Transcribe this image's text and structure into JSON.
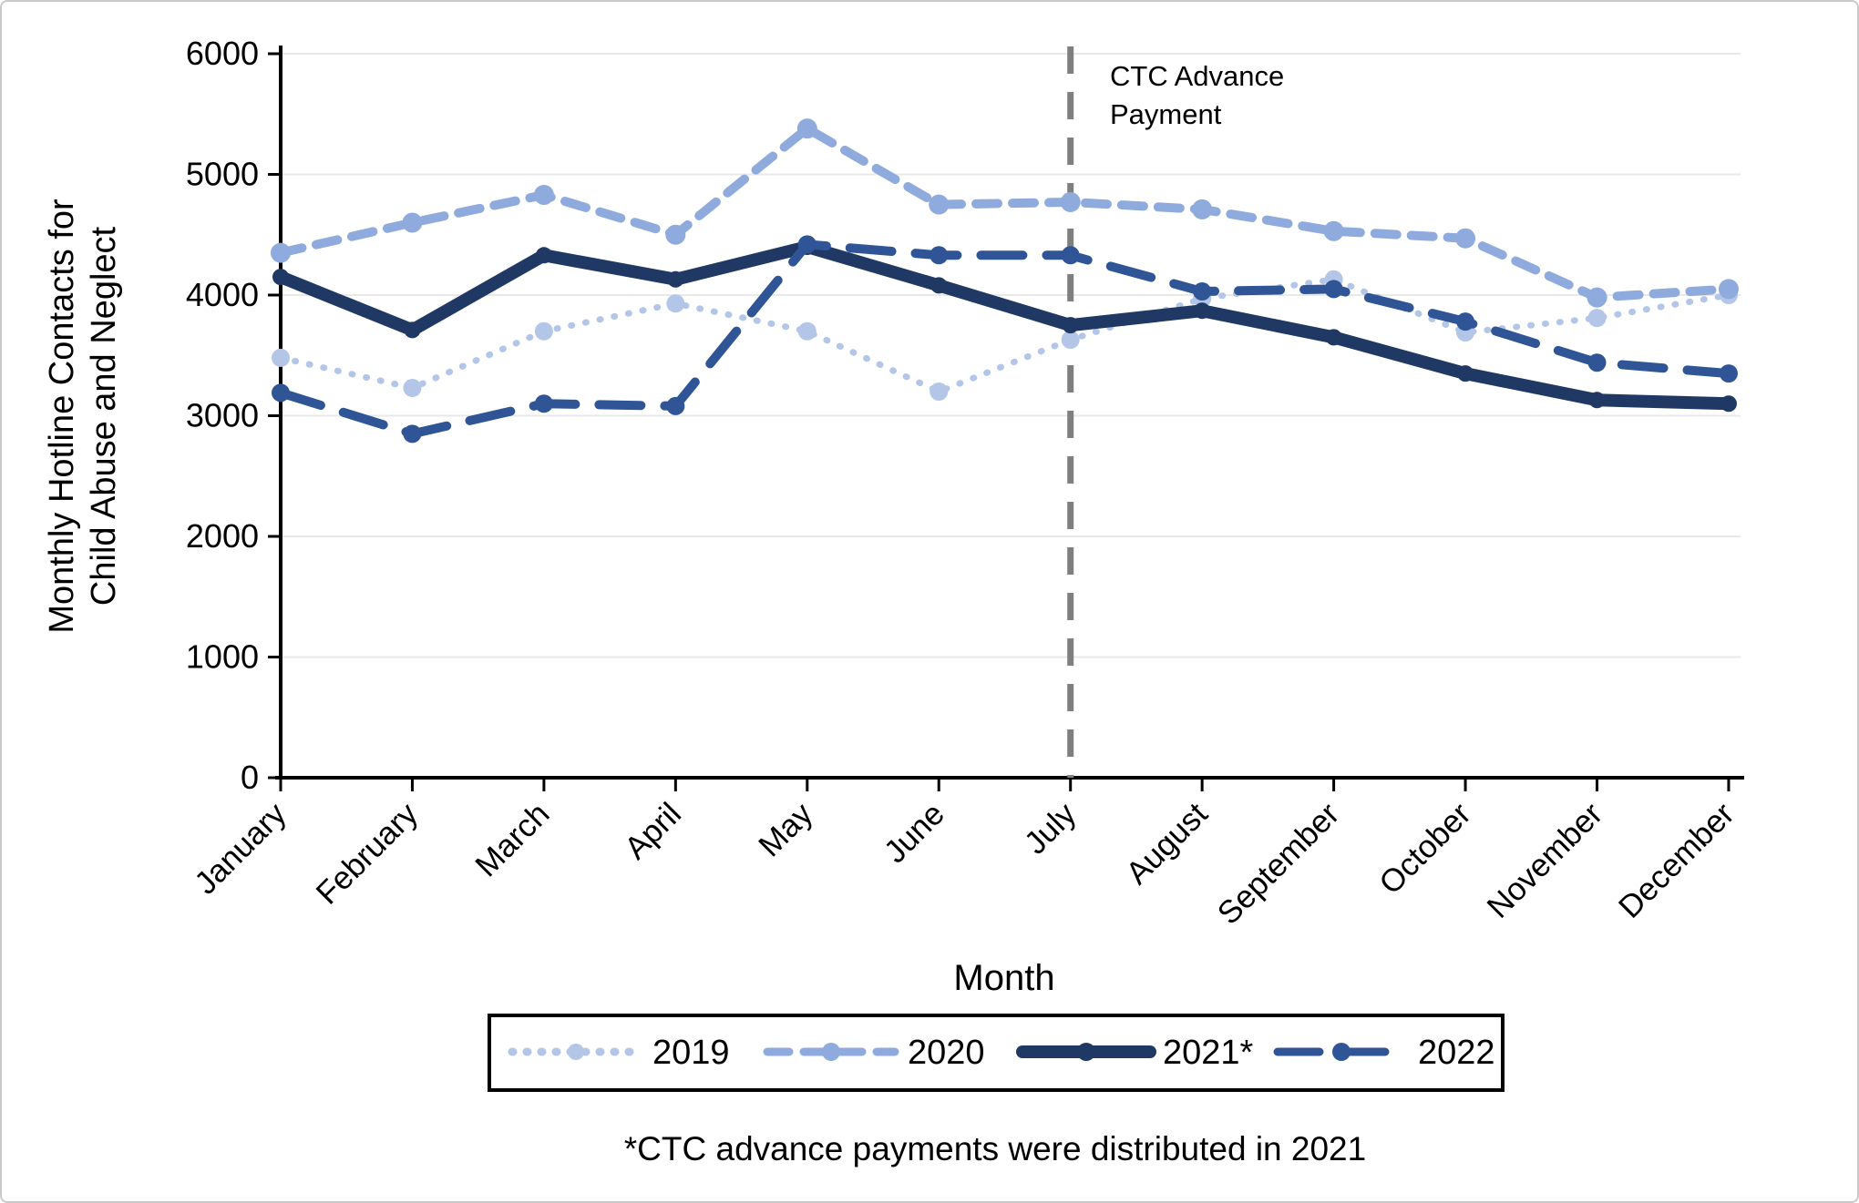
{
  "figure": {
    "y_axis_title_line1": "Monthly Hotline Contacts for",
    "y_axis_title_line2": "Child Abuse and Neglect",
    "x_axis_title": "Month",
    "footnote": "*CTC advance payments were distributed in 2021",
    "annotation_line1": "CTC Advance",
    "annotation_line2": "Payment"
  },
  "chart_data": {
    "type": "line",
    "title": "",
    "xlabel": "Month",
    "ylabel": "Monthly Hotline Contacts for Child Abuse and Neglect",
    "ylim": [
      0,
      6000
    ],
    "ytick_step": 1000,
    "grid": true,
    "legend_position": "bottom",
    "categories": [
      "January",
      "February",
      "March",
      "April",
      "May",
      "June",
      "July",
      "August",
      "September",
      "October",
      "November",
      "December"
    ],
    "series": [
      {
        "name": "2019",
        "style": "dotted",
        "color": "#B4C6E7",
        "values": [
          3480,
          3230,
          3700,
          3930,
          3700,
          3200,
          3630,
          3970,
          4130,
          3690,
          3810,
          4000
        ]
      },
      {
        "name": "2020",
        "style": "dashed",
        "color": "#8FAADC",
        "values": [
          4350,
          4600,
          4830,
          4500,
          5380,
          4750,
          4770,
          4710,
          4530,
          4470,
          3980,
          4050
        ]
      },
      {
        "name": "2021*",
        "style": "solid",
        "color": "#1F3864",
        "values": [
          4150,
          3710,
          4330,
          4130,
          4400,
          4080,
          3750,
          3870,
          3650,
          3350,
          3130,
          3100
        ]
      },
      {
        "name": "2022",
        "style": "longdash",
        "color": "#2F5597",
        "values": [
          3190,
          2850,
          3100,
          3080,
          4420,
          4330,
          4330,
          4030,
          4050,
          3780,
          3440,
          3350
        ]
      }
    ],
    "vline": {
      "x_category": "July",
      "label": "CTC Advance Payment",
      "color": "#7F7F7F"
    }
  },
  "colors": {
    "axis": "#000000",
    "gridline": "#E9E9E9",
    "annotation_line": "#7F7F7F",
    "text": "#000000"
  }
}
